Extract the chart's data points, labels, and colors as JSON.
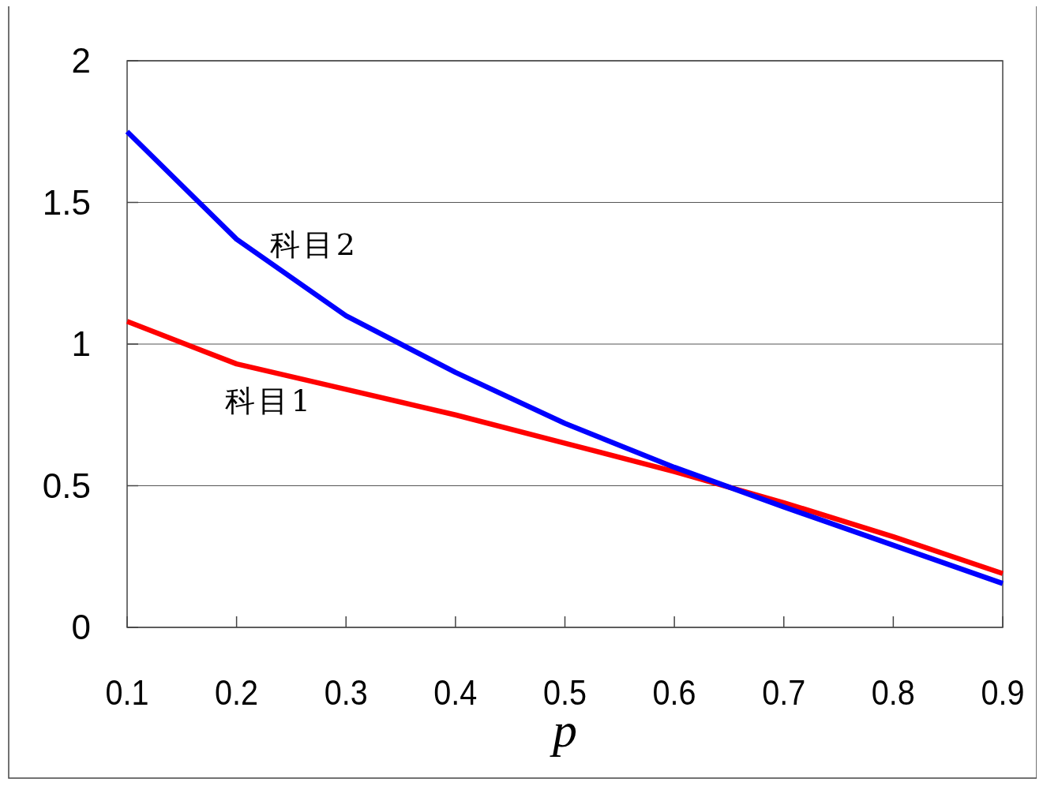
{
  "chart_data": {
    "type": "line",
    "xlabel": "p",
    "x": [
      0.1,
      0.2,
      0.3,
      0.4,
      0.5,
      0.6,
      0.7,
      0.8,
      0.9
    ],
    "xlim": [
      0.1,
      0.9
    ],
    "xticks": [
      0.1,
      0.2,
      0.3,
      0.4,
      0.5,
      0.6,
      0.7,
      0.8,
      0.9
    ],
    "ylim": [
      0,
      2
    ],
    "yticks": [
      0,
      0.5,
      1,
      1.5,
      2
    ],
    "grid": "y",
    "legend": false,
    "marker": "none",
    "line_style": "solid",
    "series": [
      {
        "name": "科目1",
        "color": "#ff0000",
        "values": [
          1.08,
          0.93,
          0.84,
          0.75,
          0.65,
          0.55,
          0.44,
          0.32,
          0.19
        ]
      },
      {
        "name": "科目2",
        "color": "#0000ff",
        "values": [
          1.75,
          1.37,
          1.1,
          0.9,
          0.72,
          0.565,
          0.425,
          0.29,
          0.155
        ]
      }
    ]
  }
}
